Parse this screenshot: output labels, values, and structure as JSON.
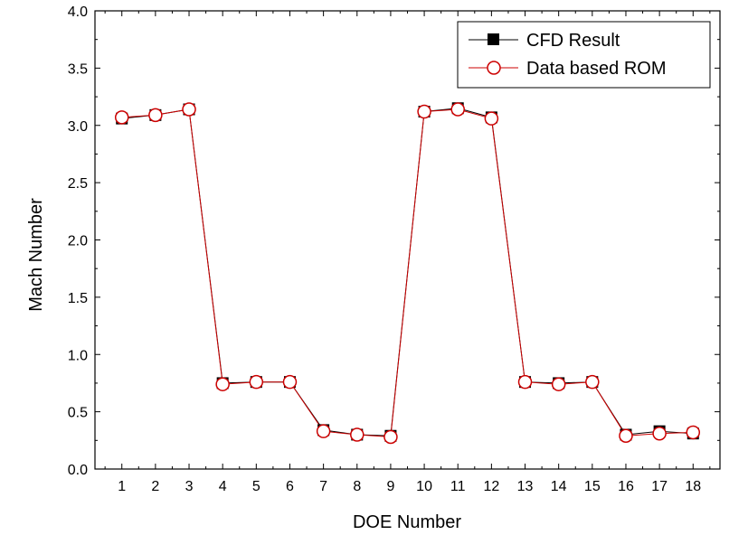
{
  "chart_data": {
    "type": "line",
    "xlabel": "DOE Number",
    "ylabel": "Mach Number",
    "categories": [
      "1",
      "2",
      "3",
      "4",
      "5",
      "6",
      "7",
      "8",
      "9",
      "10",
      "11",
      "12",
      "13",
      "14",
      "15",
      "16",
      "17",
      "18"
    ],
    "x": [
      1,
      2,
      3,
      4,
      5,
      6,
      7,
      8,
      9,
      10,
      11,
      12,
      13,
      14,
      15,
      16,
      17,
      18
    ],
    "xlim": [
      0.2,
      18.8
    ],
    "ylim": [
      0.0,
      4.0
    ],
    "yticks": [
      "0.0",
      "0.5",
      "1.0",
      "1.5",
      "2.0",
      "2.5",
      "3.0",
      "3.5",
      "4.0"
    ],
    "grid": false,
    "legend_position": "top-right",
    "series": [
      {
        "name": "CFD Result",
        "color": "#000000",
        "marker": "filled-square",
        "values": [
          3.06,
          3.09,
          3.14,
          0.75,
          0.76,
          0.76,
          0.34,
          0.3,
          0.29,
          3.12,
          3.15,
          3.07,
          0.76,
          0.75,
          0.76,
          0.3,
          0.33,
          0.31
        ]
      },
      {
        "name": "Data based ROM",
        "color": "#cc0000",
        "marker": "open-circle",
        "values": [
          3.07,
          3.09,
          3.14,
          0.74,
          0.76,
          0.76,
          0.33,
          0.3,
          0.28,
          3.12,
          3.14,
          3.06,
          0.76,
          0.74,
          0.76,
          0.29,
          0.31,
          0.32
        ]
      }
    ]
  }
}
